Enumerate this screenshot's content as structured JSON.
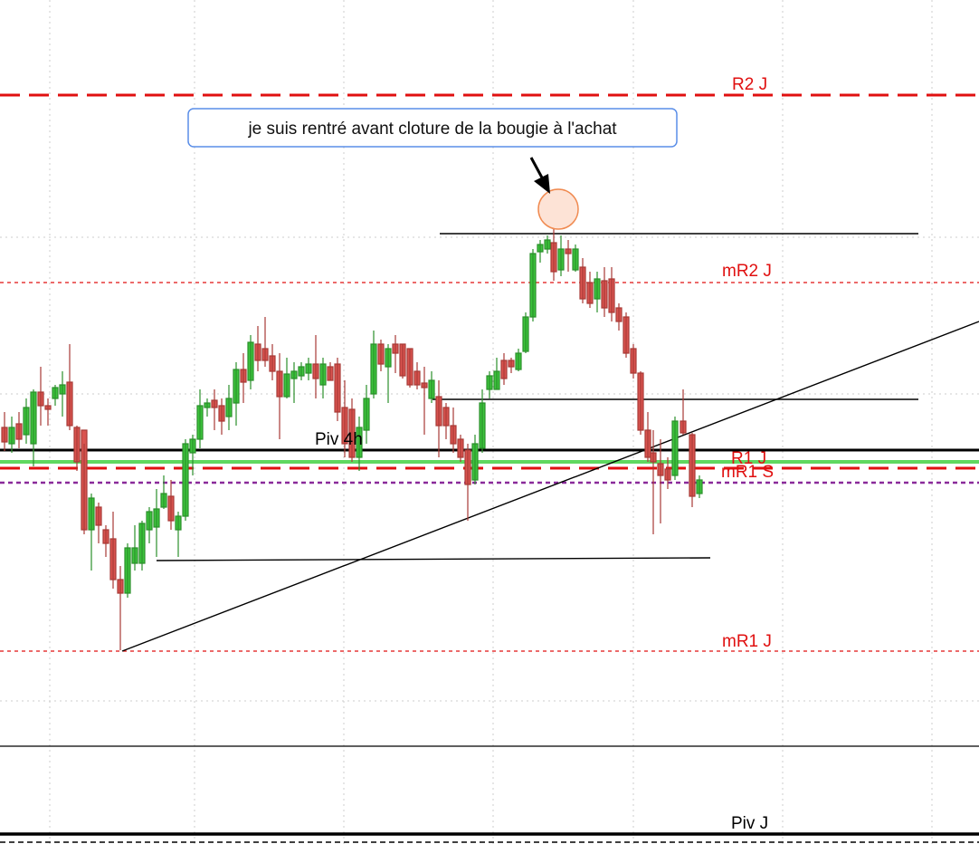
{
  "annotation": "je suis rentré avant cloture de la bougie à l'achat",
  "labels": {
    "r2_j": "R2 J",
    "mr2_j": "mR2 J",
    "piv_4h": "Piv 4h",
    "r1_j": "R1 J",
    "mr1_s": "mR1 S",
    "mr1_j": "mR1 J",
    "piv_j": "Piv J"
  }
}
